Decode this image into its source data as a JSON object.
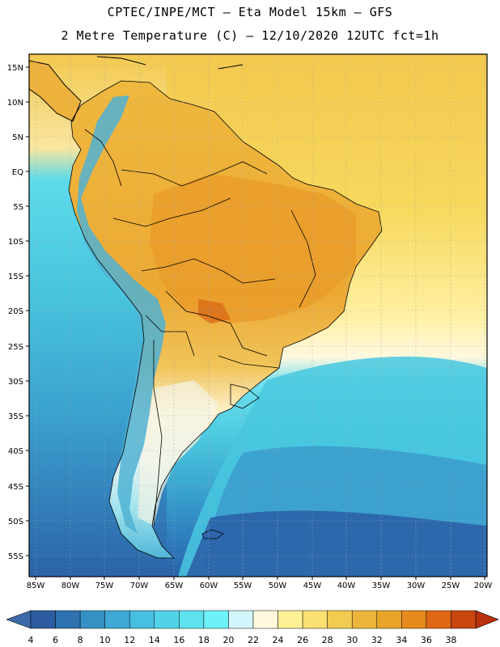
{
  "title_line1": "CPTEC/INPE/MCT –  Eta Model 15km – GFS",
  "title_line2": "2 Metre Temperature (C) – 12/10/2020 12UTC fct=1h",
  "map": {
    "lat_labels": [
      "15N",
      "10N",
      "5N",
      "EQ",
      "5S",
      "10S",
      "15S",
      "20S",
      "25S",
      "30S",
      "35S",
      "40S",
      "45S",
      "50S",
      "55S"
    ],
    "lon_labels": [
      "85W",
      "80W",
      "75W",
      "70W",
      "65W",
      "60W",
      "55W",
      "50W",
      "45W",
      "40W",
      "35W",
      "30W",
      "25W",
      "20W"
    ],
    "ocean_gradient_note_colors": [
      "#f5d35a",
      "#ffec97",
      "#fff7dd",
      "#67ddee",
      "#49cce0",
      "#3aa8d0",
      "#2e7fbd"
    ]
  },
  "colorbar": {
    "labels": [
      "4",
      "6",
      "8",
      "10",
      "12",
      "14",
      "16",
      "18",
      "20",
      "22",
      "24",
      "26",
      "28",
      "30",
      "32",
      "34",
      "36",
      "38"
    ],
    "colors": [
      "#2c5c9f",
      "#2e72b0",
      "#3690c4",
      "#3ea9d6",
      "#46bfe0",
      "#52d2e8",
      "#5ee2ee",
      "#6cf2f8",
      "#d2f6fb",
      "#fff8dc",
      "#fff096",
      "#fbe072",
      "#f2cb51",
      "#ecb63c",
      "#e9a42a",
      "#e58a1c",
      "#e06714",
      "#c9460f"
    ],
    "under_color": "#3a6aa8",
    "over_color": "#b9300d"
  }
}
